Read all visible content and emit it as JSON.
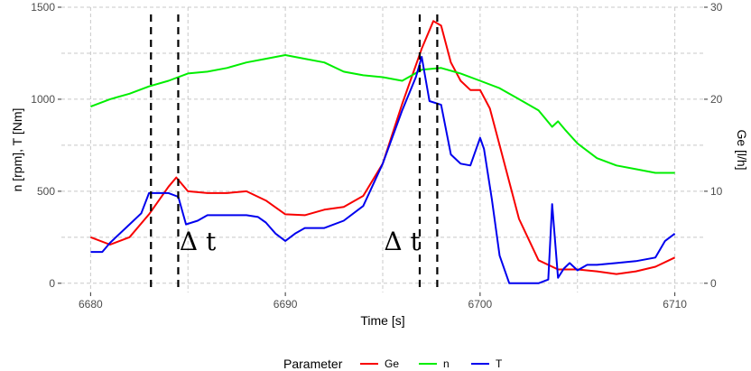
{
  "chart_data": {
    "type": "line",
    "x_label": "Time [s]",
    "y_left_label": "n [rpm], T [Nm]",
    "y_right_label": "Ge [l/h]",
    "x_range": [
      6678.5,
      6711.5
    ],
    "y_left_range": [
      -50,
      1500
    ],
    "y_right_range": [
      -1,
      30
    ],
    "x_ticks": [
      "6680",
      "6690",
      "6700",
      "6710"
    ],
    "x_tick_values": [
      6680,
      6690,
      6700,
      6710
    ],
    "y_left_ticks": [
      "0",
      "500",
      "1000",
      "1500"
    ],
    "y_left_tick_values": [
      0,
      500,
      1000,
      1500
    ],
    "y_right_ticks": [
      "0",
      "10",
      "20",
      "30"
    ],
    "y_right_tick_values": [
      0,
      10,
      20,
      30
    ],
    "grid": true,
    "legend_position": "bottom",
    "legend_title": "Parameter",
    "annotations": [
      {
        "text": "Δ t",
        "x": 6685.5,
        "y": 180
      },
      {
        "text": "Δ t",
        "x": 6696.0,
        "y": 180
      }
    ],
    "vlines": [
      6683.1,
      6684.5,
      6696.9,
      6697.8
    ],
    "series": [
      {
        "name": "Ge",
        "color": "#f80000",
        "axis": "right",
        "x": [
          6680,
          6681,
          6682,
          6683,
          6684,
          6684.4,
          6685,
          6686,
          6687,
          6688,
          6689,
          6690,
          6691,
          6692,
          6693,
          6694,
          6695,
          6696,
          6697,
          6697.6,
          6698,
          6698.5,
          6699,
          6699.5,
          6700,
          6700.5,
          6701,
          6702,
          6703,
          6704,
          6705,
          6706,
          6707,
          6708,
          6709,
          6710
        ],
        "values": [
          5.0,
          4.2,
          5.0,
          7.5,
          10.5,
          11.5,
          10.0,
          9.8,
          9.8,
          10.0,
          9.0,
          7.5,
          7.4,
          8.0,
          8.3,
          9.5,
          13.0,
          19.5,
          25.5,
          28.5,
          28.0,
          24.0,
          22.0,
          21.0,
          21.0,
          19.0,
          15.0,
          7.0,
          2.5,
          1.5,
          1.5,
          1.3,
          1.0,
          1.3,
          1.8,
          2.8
        ]
      },
      {
        "name": "n",
        "color": "#00ee00",
        "axis": "left",
        "x": [
          6680,
          6681,
          6682,
          6683,
          6684,
          6685,
          6686,
          6687,
          6688,
          6689,
          6690,
          6691,
          6692,
          6693,
          6694,
          6695,
          6696,
          6697,
          6698,
          6699,
          6700,
          6701,
          6702,
          6703,
          6703.7,
          6704,
          6704.4,
          6705,
          6706,
          6707,
          6708,
          6709,
          6710
        ],
        "values": [
          960,
          1000,
          1030,
          1070,
          1100,
          1140,
          1150,
          1170,
          1200,
          1220,
          1240,
          1220,
          1200,
          1150,
          1130,
          1120,
          1100,
          1160,
          1170,
          1140,
          1100,
          1060,
          1000,
          940,
          850,
          880,
          830,
          760,
          680,
          640,
          620,
          600,
          600
        ]
      },
      {
        "name": "T",
        "color": "#0000ee",
        "axis": "left",
        "x": [
          6680,
          6680.6,
          6681,
          6682,
          6682.6,
          6683,
          6683.6,
          6684,
          6684.5,
          6684.9,
          6685.5,
          6686,
          6687,
          6688,
          6688.6,
          6689,
          6689.5,
          6690,
          6690.5,
          6691,
          6692,
          6693,
          6694,
          6695,
          6696,
          6696.7,
          6697,
          6697.4,
          6698,
          6698.5,
          6699,
          6699.5,
          6700,
          6700.2,
          6700.6,
          6701,
          6701.5,
          6702,
          6703,
          6703.5,
          6703.7,
          6704,
          6704.3,
          6704.6,
          6705,
          6705.5,
          6706,
          6707,
          6708,
          6709,
          6709.5,
          6710
        ],
        "values": [
          170,
          170,
          220,
          320,
          380,
          490,
          490,
          490,
          470,
          320,
          340,
          370,
          370,
          370,
          360,
          330,
          270,
          230,
          270,
          300,
          300,
          340,
          420,
          650,
          940,
          1120,
          1230,
          990,
          970,
          700,
          650,
          640,
          790,
          730,
          460,
          150,
          0,
          0,
          0,
          20,
          430,
          30,
          80,
          110,
          70,
          100,
          100,
          110,
          120,
          140,
          230,
          270
        ]
      }
    ]
  }
}
